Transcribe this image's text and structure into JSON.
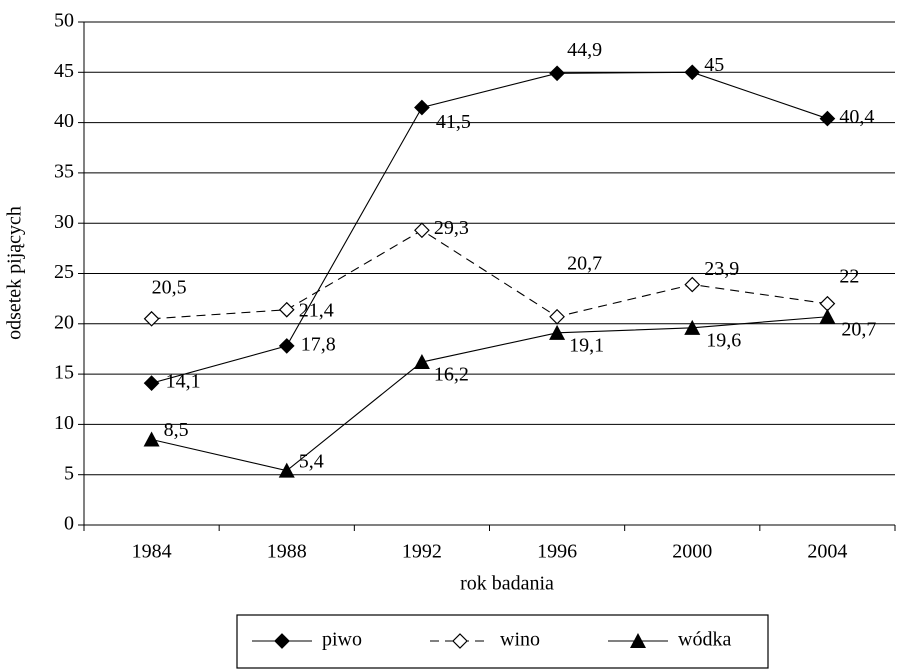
{
  "chart_data": {
    "type": "line",
    "x_label": "rok badania",
    "y_label": "odsetek pijących",
    "categories": [
      "1984",
      "1988",
      "1992",
      "1996",
      "2000",
      "2004"
    ],
    "series": [
      {
        "name": "piwo",
        "color": "#000000",
        "marker": "diamond",
        "line_style": "solid",
        "values": [
          14.1,
          17.8,
          41.5,
          44.9,
          45,
          40.4
        ],
        "value_labels": [
          "14,1",
          "17,8",
          "41,5",
          "44,9",
          "45",
          "40,4"
        ]
      },
      {
        "name": "wino",
        "color": "#000000",
        "marker": "diamond-open",
        "line_style": "dashed",
        "values": [
          20.5,
          21.4,
          29.3,
          20.7,
          23.9,
          22
        ],
        "value_labels": [
          "20,5",
          "21,4",
          "29,3",
          "20,7",
          "23,9",
          "22"
        ]
      },
      {
        "name": "wódka",
        "color": "#000000",
        "marker": "triangle",
        "line_style": "solid",
        "values": [
          8.5,
          5.4,
          16.2,
          19.1,
          19.6,
          20.7
        ],
        "value_labels": [
          "8,5",
          "5,4",
          "16,2",
          "19,1",
          "19,6",
          "20,7"
        ]
      }
    ],
    "ylim": [
      0,
      50
    ],
    "yticks": [
      0,
      5,
      10,
      15,
      20,
      25,
      30,
      35,
      40,
      45,
      50
    ],
    "grid": true,
    "legend": "bottom"
  }
}
